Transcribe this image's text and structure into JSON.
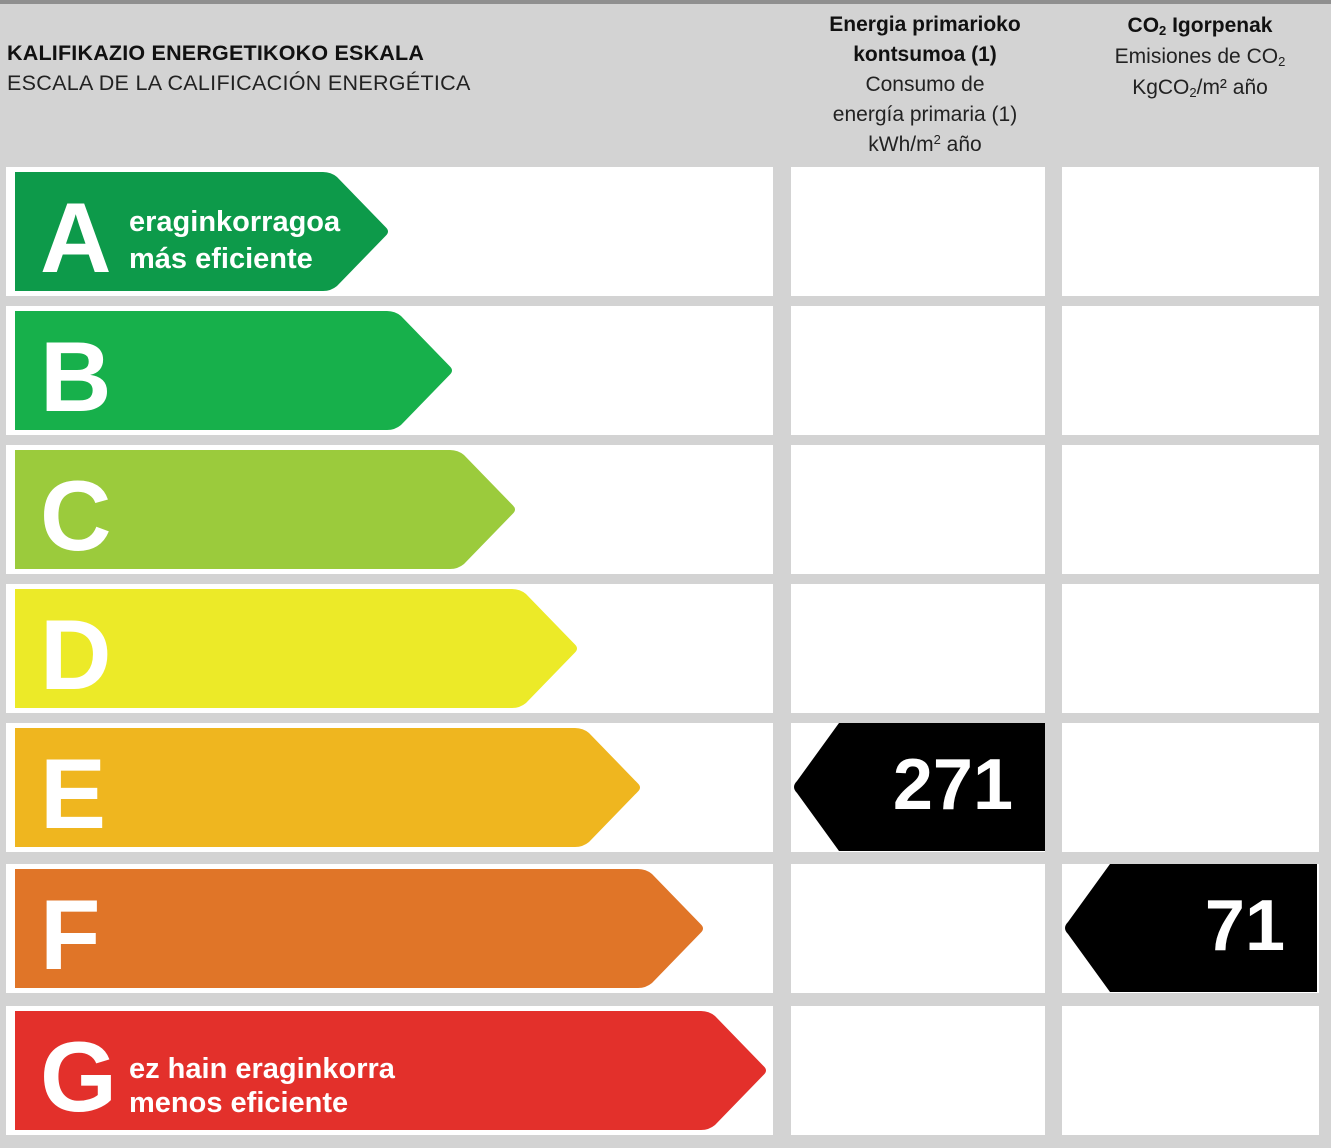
{
  "header": {
    "title_eu": "KALIFIKAZIO ENERGETIKOKO ESKALA",
    "title_es": "ESCALA DE LA CALIFICACIÓN ENERGÉTICA",
    "col1": {
      "line1": "Energia primarioko",
      "line2": "kontsumoa (1)",
      "line3": "Consumo de",
      "line4": "energía primaria (1)",
      "unit_a": "kWh/m",
      "unit_sup": "2",
      "unit_b": " año"
    },
    "col2": {
      "co": "CO",
      "sub": "2",
      "bold_rest": " Igorpenak",
      "line2_a": "Emisiones de CO",
      "line2_sub": "2",
      "unit_a": "KgCO",
      "unit_sub": "2",
      "unit_b": "/m² año"
    }
  },
  "ratings": [
    {
      "letter": "A",
      "color": "#0d9a4a",
      "label_eu": "eraginkorragoa",
      "label_es": "más eficiente"
    },
    {
      "letter": "B",
      "color": "#17b04b",
      "label_eu": "",
      "label_es": ""
    },
    {
      "letter": "C",
      "color": "#9bcb3c",
      "label_eu": "",
      "label_es": ""
    },
    {
      "letter": "D",
      "color": "#ecea28",
      "label_eu": "",
      "label_es": ""
    },
    {
      "letter": "E",
      "color": "#efb61f",
      "label_eu": "",
      "label_es": ""
    },
    {
      "letter": "F",
      "color": "#e07528",
      "label_eu": "",
      "label_es": ""
    },
    {
      "letter": "G",
      "color": "#e3302b",
      "label_eu": "ez hain eraginkorra",
      "label_es": "menos eficiente"
    }
  ],
  "result": {
    "energy_value": "271",
    "energy_rating": "E",
    "emissions_value": "71",
    "emissions_rating": "F",
    "marker_color": "#000000"
  }
}
